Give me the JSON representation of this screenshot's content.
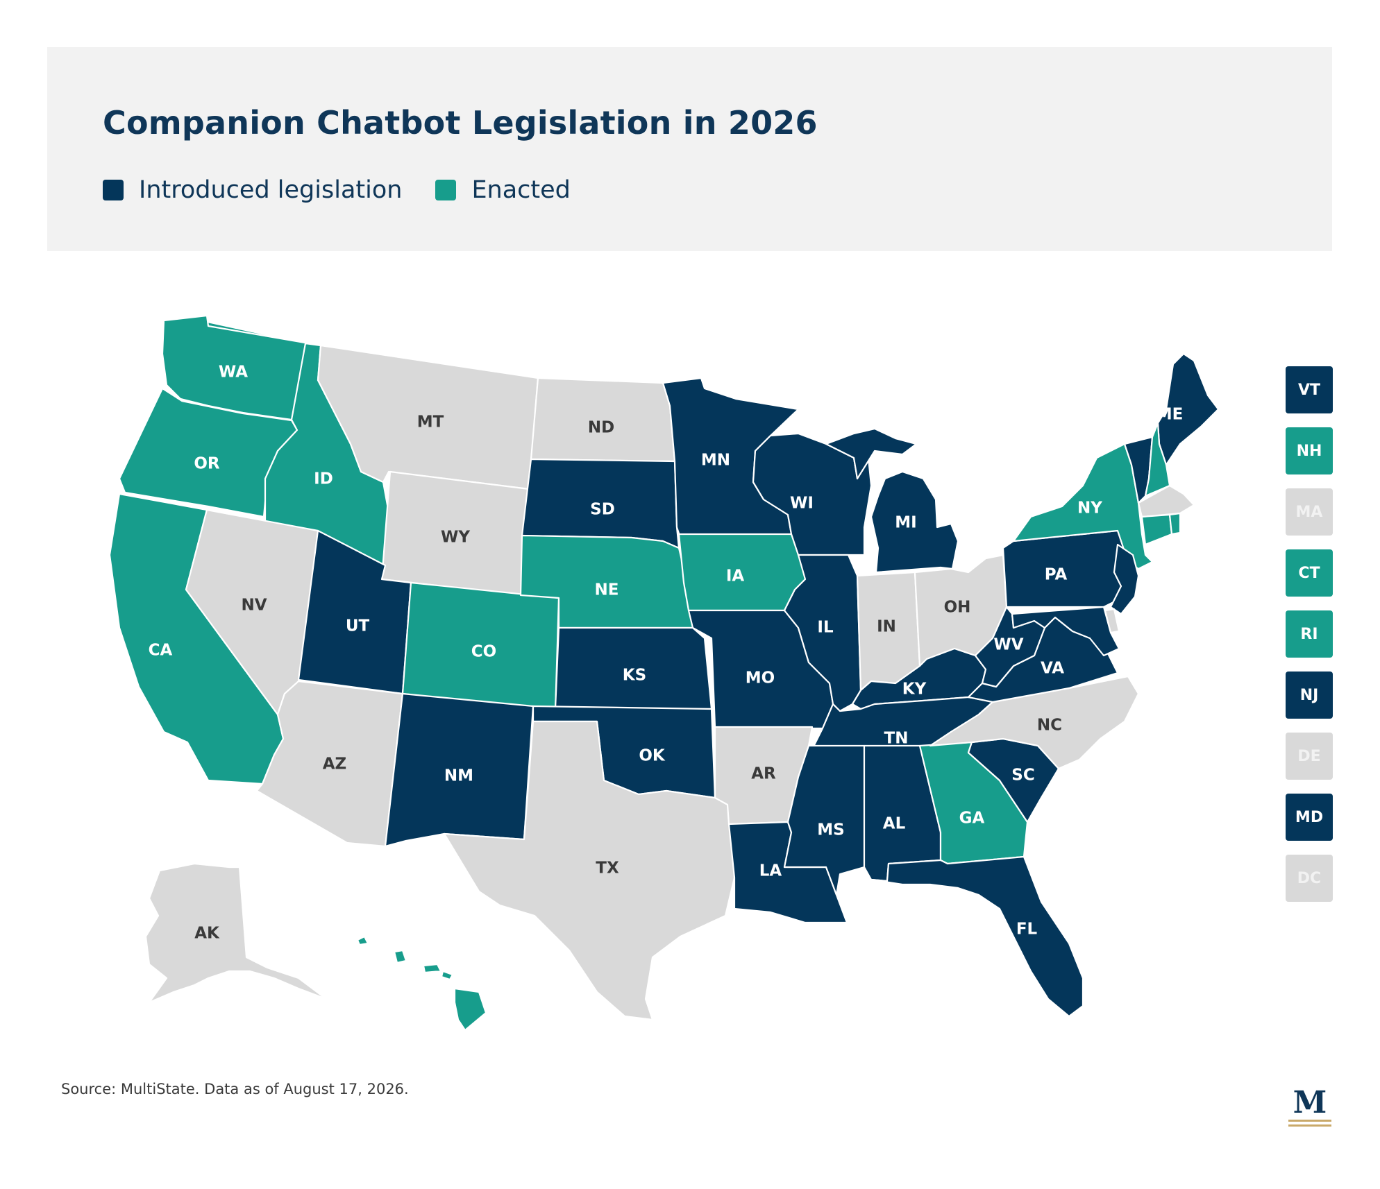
{
  "title": "Companion Chatbot Legislation in 2026",
  "legend": [
    {
      "label": "Introduced legislation",
      "status": "introduced"
    },
    {
      "label": "Enacted",
      "status": "enacted"
    }
  ],
  "colors": {
    "introduced": "#04365a",
    "enacted": "#179d8c",
    "none": "#d9d9d9",
    "label_dark_bg": "#ffffff",
    "label_light_bg": "#3a3a3a",
    "label_small_none": "#f2f2f2",
    "logo_gold": "#c9a96a"
  },
  "states": [
    {
      "abbr": "WA",
      "status": "enacted"
    },
    {
      "abbr": "OR",
      "status": "enacted"
    },
    {
      "abbr": "CA",
      "status": "enacted"
    },
    {
      "abbr": "ID",
      "status": "enacted"
    },
    {
      "abbr": "NV",
      "status": "none"
    },
    {
      "abbr": "MT",
      "status": "none"
    },
    {
      "abbr": "WY",
      "status": "none"
    },
    {
      "abbr": "UT",
      "status": "introduced"
    },
    {
      "abbr": "AZ",
      "status": "none"
    },
    {
      "abbr": "CO",
      "status": "enacted"
    },
    {
      "abbr": "NM",
      "status": "introduced"
    },
    {
      "abbr": "ND",
      "status": "none"
    },
    {
      "abbr": "SD",
      "status": "introduced"
    },
    {
      "abbr": "NE",
      "status": "enacted"
    },
    {
      "abbr": "KS",
      "status": "introduced"
    },
    {
      "abbr": "OK",
      "status": "introduced"
    },
    {
      "abbr": "TX",
      "status": "none"
    },
    {
      "abbr": "MN",
      "status": "introduced"
    },
    {
      "abbr": "IA",
      "status": "enacted"
    },
    {
      "abbr": "MO",
      "status": "introduced"
    },
    {
      "abbr": "AR",
      "status": "none"
    },
    {
      "abbr": "LA",
      "status": "introduced"
    },
    {
      "abbr": "WI",
      "status": "introduced"
    },
    {
      "abbr": "IL",
      "status": "introduced"
    },
    {
      "abbr": "MI",
      "status": "introduced"
    },
    {
      "abbr": "IN",
      "status": "none"
    },
    {
      "abbr": "OH",
      "status": "none"
    },
    {
      "abbr": "KY",
      "status": "introduced"
    },
    {
      "abbr": "TN",
      "status": "introduced"
    },
    {
      "abbr": "MS",
      "status": "introduced"
    },
    {
      "abbr": "AL",
      "status": "introduced"
    },
    {
      "abbr": "GA",
      "status": "enacted"
    },
    {
      "abbr": "FL",
      "status": "introduced"
    },
    {
      "abbr": "SC",
      "status": "introduced"
    },
    {
      "abbr": "NC",
      "status": "none"
    },
    {
      "abbr": "VA",
      "status": "introduced"
    },
    {
      "abbr": "WV",
      "status": "introduced"
    },
    {
      "abbr": "PA",
      "status": "introduced"
    },
    {
      "abbr": "NY",
      "status": "enacted"
    },
    {
      "abbr": "ME",
      "status": "introduced"
    },
    {
      "abbr": "AK",
      "status": "none"
    },
    {
      "abbr": "HI",
      "status": "enacted"
    }
  ],
  "small_states": [
    {
      "abbr": "VT",
      "status": "introduced"
    },
    {
      "abbr": "NH",
      "status": "enacted"
    },
    {
      "abbr": "MA",
      "status": "none"
    },
    {
      "abbr": "CT",
      "status": "enacted"
    },
    {
      "abbr": "RI",
      "status": "enacted"
    },
    {
      "abbr": "NJ",
      "status": "introduced"
    },
    {
      "abbr": "DE",
      "status": "none"
    },
    {
      "abbr": "MD",
      "status": "introduced"
    },
    {
      "abbr": "DC",
      "status": "none"
    }
  ],
  "source": "Source: MultiState. Data as of August 17, 2026.",
  "logo": {
    "letter": "M"
  }
}
